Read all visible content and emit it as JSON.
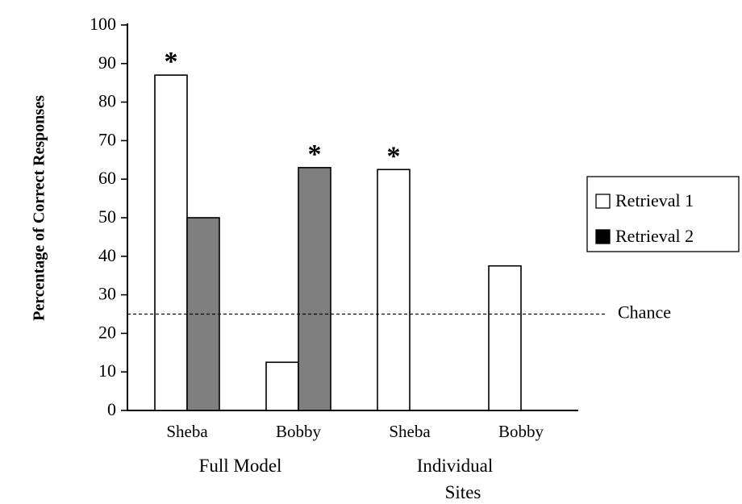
{
  "chart_data": {
    "type": "bar",
    "ylabel": "Percentage of Correct Responses",
    "ylim": [
      0,
      100
    ],
    "yticks": [
      0,
      10,
      20,
      30,
      40,
      50,
      60,
      70,
      80,
      90,
      100
    ],
    "categories": [
      "Sheba",
      "Bobby",
      "Sheba",
      "Bobby"
    ],
    "groups": [
      {
        "label": "Full Model",
        "categories": [
          "Sheba",
          "Bobby"
        ]
      },
      {
        "label": "Individual Sites",
        "categories": [
          "Sheba",
          "Bobby"
        ]
      }
    ],
    "series": [
      {
        "name": "Retrieval 1",
        "color": "#ffffff",
        "values": [
          87,
          12.5,
          62.5,
          37.5
        ]
      },
      {
        "name": "Retrieval 2",
        "color": "#7f7f7f",
        "values": [
          50,
          63,
          null,
          null
        ]
      }
    ],
    "significance_marker": "*",
    "significant": [
      {
        "series": 0,
        "category": 0
      },
      {
        "series": 1,
        "category": 1
      },
      {
        "series": 0,
        "category": 2
      }
    ],
    "reference_line": {
      "label": "Chance",
      "value": 25
    },
    "legend_position": "right",
    "grid": false
  }
}
